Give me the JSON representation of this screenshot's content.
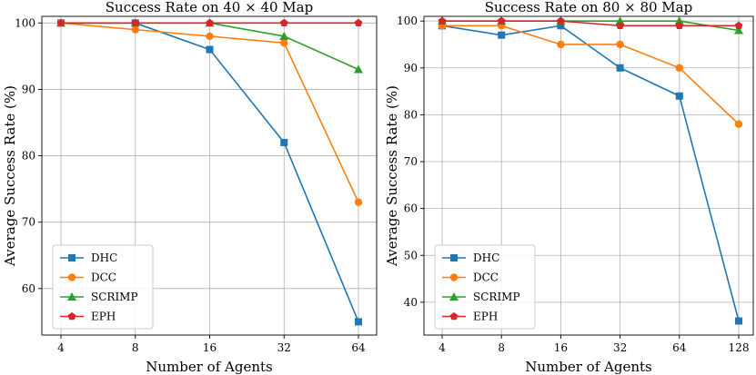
{
  "chart_data": [
    {
      "type": "line",
      "title": "Success Rate on 40 × 40 Map",
      "xlabel": "Number of Agents",
      "ylabel": "Average Success Rate (%)",
      "categories": [
        "4",
        "8",
        "16",
        "32",
        "64"
      ],
      "ylim": [
        53,
        101
      ],
      "yticks": [
        60,
        70,
        80,
        90,
        100
      ],
      "grid": true,
      "legend": "bottom-left",
      "series": [
        {
          "name": "DHC",
          "color": "#1f77b4",
          "marker": "square",
          "values": [
            100,
            100,
            96,
            82,
            55
          ]
        },
        {
          "name": "DCC",
          "color": "#ff7f0e",
          "marker": "circle",
          "values": [
            100,
            99,
            98,
            97,
            73
          ]
        },
        {
          "name": "SCRIMP",
          "color": "#2ca02c",
          "marker": "triangle",
          "values": [
            100,
            100,
            100,
            98,
            93
          ]
        },
        {
          "name": "EPH",
          "color": "#d62728",
          "marker": "pentagon",
          "values": [
            100,
            100,
            100,
            100,
            100
          ]
        }
      ]
    },
    {
      "type": "line",
      "title": "Success Rate on 80 × 80 Map",
      "xlabel": "Number of Agents",
      "ylabel": "Average Success Rate (%)",
      "categories": [
        "4",
        "8",
        "16",
        "32",
        "64",
        "128"
      ],
      "ylim": [
        33,
        101
      ],
      "yticks": [
        40,
        50,
        60,
        70,
        80,
        90,
        100
      ],
      "grid": true,
      "legend": "bottom-left",
      "series": [
        {
          "name": "DHC",
          "color": "#1f77b4",
          "marker": "square",
          "values": [
            99,
            97,
            99,
            90,
            84,
            36
          ]
        },
        {
          "name": "DCC",
          "color": "#ff7f0e",
          "marker": "circle",
          "values": [
            99,
            99,
            95,
            95,
            90,
            78
          ]
        },
        {
          "name": "SCRIMP",
          "color": "#2ca02c",
          "marker": "triangle",
          "values": [
            100,
            100,
            100,
            100,
            100,
            98
          ]
        },
        {
          "name": "EPH",
          "color": "#d62728",
          "marker": "pentagon",
          "values": [
            100,
            100,
            100,
            99,
            99,
            99
          ]
        }
      ]
    }
  ]
}
